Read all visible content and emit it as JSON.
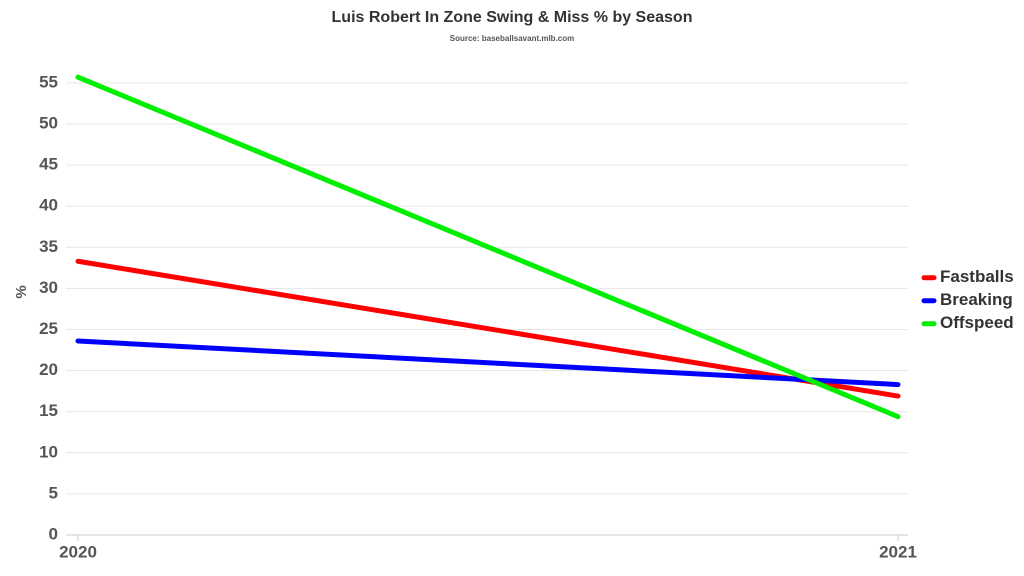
{
  "chart_data": {
    "type": "line",
    "title": "Luis Robert In Zone Swing & Miss % by Season",
    "subtitle": "Source: baseballsavant.mlb.com",
    "y_label": "%",
    "categories": [
      "2020",
      "2021"
    ],
    "series": [
      {
        "name": "Fastballs",
        "color": "#ff0000",
        "values": [
          33.3,
          16.9
        ]
      },
      {
        "name": "Breaking",
        "color": "#0000ff",
        "values": [
          23.6,
          18.3
        ]
      },
      {
        "name": "Offspeed",
        "color": "#00ee00",
        "values": [
          55.7,
          14.4
        ]
      }
    ],
    "ylim": [
      0,
      57
    ],
    "yticks": [
      0,
      5,
      10,
      15,
      20,
      25,
      30,
      35,
      40,
      45,
      50,
      55
    ],
    "grid": true,
    "legend": "right"
  }
}
